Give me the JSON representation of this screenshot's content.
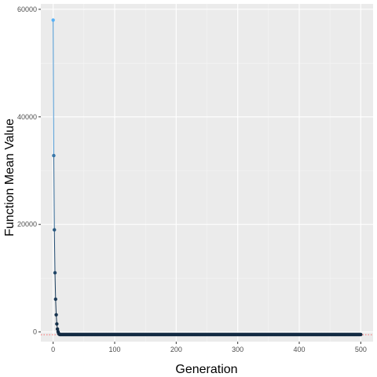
{
  "chart_data": {
    "type": "line",
    "xlabel": "Generation",
    "ylabel": "Function Mean Value",
    "xlim": [
      -20,
      520
    ],
    "ylim": [
      -1800,
      61000
    ],
    "x_ticks": [
      0,
      100,
      200,
      300,
      400,
      500
    ],
    "y_ticks": [
      0,
      20000,
      40000,
      60000
    ],
    "x_tick_labels": [
      "0",
      "100",
      "200",
      "300",
      "400",
      "500"
    ],
    "y_tick_labels": [
      "0",
      "20000",
      "40000",
      "60000"
    ],
    "reference_line": {
      "y": -500,
      "style": "dotted",
      "color": "#ff4040"
    },
    "grid": true,
    "legend": "none",
    "color_scale": {
      "low": "#132b43",
      "high": "#56b1f7"
    },
    "series": [
      {
        "points": [
          {
            "x": 0,
            "y": 58000
          },
          {
            "x": 1,
            "y": 32800
          },
          {
            "x": 2,
            "y": 19000
          },
          {
            "x": 3,
            "y": 11000
          },
          {
            "x": 4,
            "y": 6100
          },
          {
            "x": 5,
            "y": 3200
          },
          {
            "x": 6,
            "y": 1500
          },
          {
            "x": 7,
            "y": 550
          },
          {
            "x": 8,
            "y": 60
          },
          {
            "x": 9,
            "y": -300
          },
          {
            "x": 10,
            "y": -420
          }
        ],
        "tail": {
          "x_start": 11,
          "x_end": 500,
          "y": -480
        }
      }
    ]
  }
}
